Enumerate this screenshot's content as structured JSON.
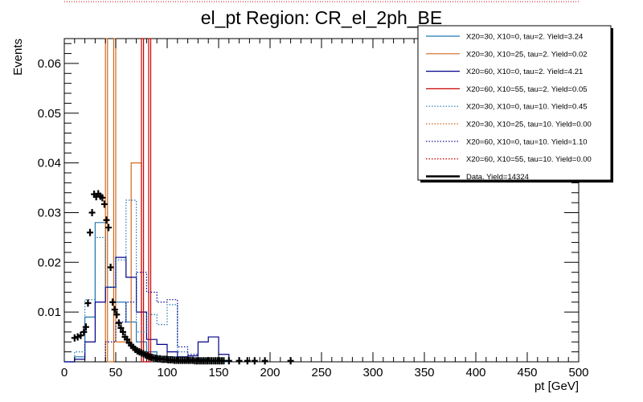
{
  "chart_data": {
    "type": "histogram",
    "title": "el_pt Region: CR_el_2ph_BE",
    "xlabel": "pt [GeV]",
    "ylabel": "Events",
    "xlim": [
      0,
      500
    ],
    "ylim": [
      0,
      0.065
    ],
    "x_ticks": [
      0,
      50,
      100,
      150,
      200,
      250,
      300,
      350,
      400,
      450,
      500
    ],
    "x_tick_labels": [
      "0",
      "50",
      "100",
      "150",
      "200",
      "250",
      "300",
      "350",
      "400",
      "450",
      "500"
    ],
    "y_ticks": [
      0.01,
      0.02,
      0.03,
      0.04,
      0.05,
      0.06
    ],
    "y_tick_labels": [
      "0.01",
      "0.02",
      "0.03",
      "0.04",
      "0.05",
      "0.06"
    ],
    "legend_position": "top-right",
    "series": [
      {
        "name": "X20=30, X10=0, tau=2. Yield=3.24",
        "color": "#1f77b4",
        "dash": false,
        "edges": [
          0,
          10,
          20,
          30,
          40,
          50,
          60,
          70,
          80,
          90,
          100,
          110,
          120,
          130,
          140,
          150,
          160
        ],
        "values": [
          0,
          0.001,
          0.009,
          0.028,
          0.015,
          0.012,
          0.008,
          0.004,
          0.002,
          0.001,
          0.001,
          0.001,
          0.0005,
          0.0005,
          0,
          0,
          0
        ]
      },
      {
        "name": "X20=30, X10=25, tau=2. Yield=0.02",
        "color": "#d2691e",
        "dash": false,
        "edges": [
          40,
          42,
          48,
          50,
          65,
          75
        ],
        "values": [
          0.065,
          0,
          0.065,
          0.004,
          0.04
        ]
      },
      {
        "name": "X20=60, X10=0, tau=2. Yield=4.21",
        "color": "#00008b",
        "dash": false,
        "edges": [
          0,
          10,
          20,
          30,
          40,
          50,
          60,
          70,
          80,
          90,
          100,
          110,
          120,
          130,
          140,
          150,
          160
        ],
        "values": [
          0,
          0.0005,
          0.004,
          0.012,
          0.015,
          0.021,
          0.017,
          0.01,
          0.0045,
          0.0035,
          0.002,
          0.001,
          0.0012,
          0.004,
          0.005,
          0.0015,
          0
        ]
      },
      {
        "name": "X20=60, X10=55, tau=2. Yield=0.05",
        "color": "#cc0000",
        "dash": false,
        "edges": [
          75,
          77,
          82,
          84
        ],
        "values": [
          0.065,
          0,
          0.065
        ]
      },
      {
        "name": "X20=30, X10=0, tau=10. Yield=0.45",
        "color": "#1f77b4",
        "dash": true,
        "edges": [
          10,
          20,
          30,
          40,
          50,
          60,
          70,
          80,
          90,
          100,
          110,
          120
        ],
        "values": [
          0.002,
          0.0125,
          0.025,
          0.015,
          0.0205,
          0.0325,
          0.006,
          0.0095,
          0.0075,
          0.0115,
          0.002
        ]
      },
      {
        "name": "X20=30, X10=25, tau=10. Yield=0.00",
        "color": "#d2691e",
        "dash": true,
        "edges": [],
        "values": []
      },
      {
        "name": "X20=60, X10=0, tau=10. Yield=1.10",
        "color": "#00008b",
        "dash": true,
        "edges": [
          40,
          50,
          60,
          70,
          80,
          90,
          100,
          110,
          120,
          130
        ],
        "values": [
          0.004,
          0.008,
          0.012,
          0.018,
          0.014,
          0.012,
          0.0125,
          0.003,
          0.0015
        ]
      },
      {
        "name": "X20=60, X10=55, tau=10. Yield=0.00",
        "color": "#cc0000",
        "dash": true,
        "edges": [],
        "values": []
      },
      {
        "name": "Data. Yield=14324",
        "color": "#000000",
        "dash": false,
        "markers": true,
        "x": [
          10,
          13,
          16,
          19,
          21,
          23,
          25,
          27,
          29,
          31,
          33,
          35,
          37,
          39,
          41,
          43,
          45,
          47,
          49,
          51,
          53,
          55,
          57,
          59,
          61,
          63,
          65,
          67,
          69,
          71,
          73,
          75,
          77,
          79,
          81,
          83,
          85,
          87,
          89,
          91,
          93,
          95,
          97,
          99,
          101,
          103,
          105,
          107,
          109,
          111,
          113,
          115,
          117,
          119,
          121,
          123,
          125,
          127,
          129,
          131,
          133,
          135,
          137,
          139,
          141,
          143,
          145,
          147,
          149,
          151,
          153,
          155,
          160,
          170,
          178,
          185,
          195,
          220
        ],
        "y": [
          0.0048,
          0.005,
          0.0053,
          0.006,
          0.007,
          0.0118,
          0.026,
          0.03,
          0.0337,
          0.0332,
          0.0338,
          0.0333,
          0.033,
          0.0317,
          0.0285,
          0.027,
          0.019,
          0.012,
          0.0105,
          0.0095,
          0.0078,
          0.0068,
          0.006,
          0.005,
          0.0045,
          0.0038,
          0.0033,
          0.0029,
          0.0025,
          0.0022,
          0.002,
          0.0018,
          0.0016,
          0.0014,
          0.0012,
          0.001,
          0.0009,
          0.0008,
          0.0007,
          0.0006,
          0.0006,
          0.0005,
          0.0005,
          0.0005,
          0.0004,
          0.0004,
          0.0004,
          0.0003,
          0.0003,
          0.0003,
          0.0003,
          0.0003,
          0.0003,
          0.0003,
          0.0003,
          0.0003,
          0.0003,
          0.0002,
          0.0002,
          0.0002,
          0.0002,
          0.0002,
          0.0002,
          0.0002,
          0.0002,
          0.0002,
          0.0002,
          0.0002,
          0.0002,
          0.0002,
          0.0002,
          0.0002,
          0.0002,
          0.0002,
          0.0002,
          0.0002,
          0.0002,
          0.0002
        ]
      }
    ]
  }
}
